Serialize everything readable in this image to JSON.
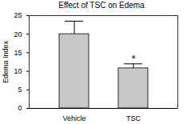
{
  "chart_data": {
    "type": "bar",
    "title": "Effect of TSC on Edema",
    "ylabel": "Edema Index",
    "categories": [
      "Vehicle",
      "TSC"
    ],
    "values": [
      20,
      10.8
    ],
    "errors": [
      3.5,
      1.2
    ],
    "annotations": [
      {
        "category": "TSC",
        "text": "*"
      }
    ],
    "color": "#c8c8c8",
    "ylim": [
      0,
      25
    ],
    "yticks": [
      0,
      5,
      10,
      15,
      20,
      25
    ]
  }
}
